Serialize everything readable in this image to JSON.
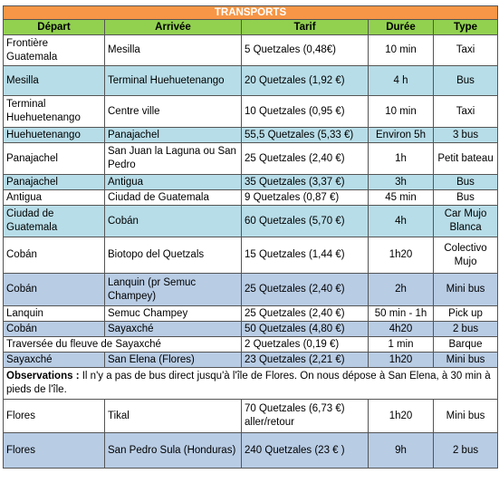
{
  "title": "TRANSPORTS",
  "headers": [
    "Départ",
    "Arrivée",
    "Tarif",
    "Durée",
    "Type"
  ],
  "rows": [
    {
      "depart": "Frontière Guatemala",
      "arrivee": "Mesilla",
      "tarif": "5 Quetzales (0,48€)",
      "duree": "10 min",
      "type": "Taxi"
    },
    {
      "depart": "Mesilla",
      "arrivee": "Terminal Huehuetenango",
      "tarif": "20 Quetzales (1,92 €)",
      "duree": "4 h",
      "type": "Bus"
    },
    {
      "depart": "Terminal Huehuetenango",
      "arrivee": "Centre ville",
      "tarif": "10 Quetzales (0,95 €)",
      "duree": "10 min",
      "type": "Taxi"
    },
    {
      "depart": "Huehuetenango",
      "arrivee": "Panajachel",
      "tarif": "55,5 Quetzales (5,33 €)",
      "duree": "Environ 5h",
      "type": "3 bus"
    },
    {
      "depart": "Panajachel",
      "arrivee": "San Juan la Laguna ou San Pedro",
      "tarif": "25 Quetzales (2,40 €)",
      "duree": "1h",
      "type": "Petit bateau"
    },
    {
      "depart": "Panajachel",
      "arrivee": "Antigua",
      "tarif": "35 Quetzales (3,37 €)",
      "duree": "3h",
      "type": "Bus"
    },
    {
      "depart": "Antigua",
      "arrivee": "Ciudad de Guatemala",
      "tarif": "9 Quetzales (0,87 €)",
      "duree": "45 min",
      "type": "Bus"
    },
    {
      "depart": "Ciudad de Guatemala",
      "arrivee": "Cobán",
      "tarif": "60 Quetzales (5,70 €)",
      "duree": "4h",
      "type": "Car Mujo Blanca"
    },
    {
      "depart": "Cobán",
      "arrivee": "Biotopo del Quetzals",
      "tarif": "15 Quetzales (1,44 €)",
      "duree": "1h20",
      "type": "Colectivo Mujo"
    },
    {
      "depart": "Cobán",
      "arrivee": "Lanquin (pr Semuc Champey)",
      "tarif": "25 Quetzales (2,40 €)",
      "duree": "2h",
      "type": "Mini bus"
    },
    {
      "depart": "Lanquin",
      "arrivee": "Semuc Champey",
      "tarif": "25 Quetzales (2,40 €)",
      "duree": "50 min - 1h",
      "type": "Pick up"
    },
    {
      "depart": "Cobán",
      "arrivee": "Sayaxché",
      "tarif": "50 Quetzales (4,80 €)",
      "duree": "4h20",
      "type": "2 bus"
    },
    {
      "depart": "Traversée du fleuve de Sayaxché",
      "arrivee": "",
      "tarif": "2 Quetzales (0,19 €)",
      "duree": "1 min",
      "type": "Barque"
    },
    {
      "depart": "Sayaxché",
      "arrivee": "San Elena (Flores)",
      "tarif": "23 Quetzales (2,21 €)",
      "duree": "1h20",
      "type": "Mini bus"
    }
  ],
  "observations": {
    "label": "Observations :",
    "text": " Il n'y a pas de bus direct jusqu'à l'île de Flores. On nous dépose à San Elena, à 30 min à pieds de l'île."
  },
  "rows_after": [
    {
      "depart": "Flores",
      "arrivee": "Tikal",
      "tarif": "70 Quetzales (6,73 €) aller/retour",
      "duree": "1h20",
      "type": "Mini bus"
    },
    {
      "depart": "Flores",
      "arrivee": "San Pedro Sula (Honduras)",
      "tarif": "240 Quetzales (23 € )",
      "duree": "9h",
      "type": "2 bus"
    }
  ]
}
